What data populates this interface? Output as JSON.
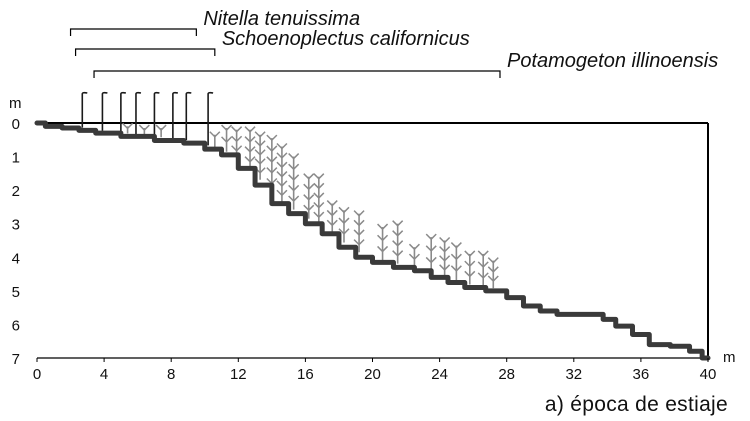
{
  "caption": "a) época de estiaje",
  "x_axis": {
    "unit": "m",
    "min": 0,
    "max": 40,
    "ticks": [
      0,
      4,
      8,
      12,
      16,
      20,
      24,
      28,
      32,
      36,
      40
    ],
    "tick_labels": [
      "0",
      "4",
      "8",
      "12",
      "16",
      "20",
      "24",
      "28",
      "32",
      "36",
      "40"
    ]
  },
  "y_axis": {
    "unit": "m",
    "min": 0,
    "max": 7,
    "inverted": true,
    "ticks": [
      0,
      1,
      2,
      3,
      4,
      5,
      6,
      7
    ],
    "tick_labels": [
      "0",
      "1",
      "2",
      "3",
      "4",
      "5",
      "6",
      "7"
    ]
  },
  "species": [
    {
      "name": "Nitella tenuissima",
      "x_start": 2.0,
      "x_end": 9.5
    },
    {
      "name": "Schoenoplectus californicus",
      "x_start": 2.3,
      "x_end": 10.6
    },
    {
      "name": "Potamogeton illinoensis",
      "x_start": 3.4,
      "x_end": 27.6
    }
  ],
  "bottom_profile": [
    [
      0,
      0.0
    ],
    [
      1,
      0.1
    ],
    [
      2,
      0.15
    ],
    [
      3,
      0.22
    ],
    [
      4,
      0.3
    ],
    [
      6,
      0.4
    ],
    [
      8,
      0.52
    ],
    [
      9.5,
      0.6
    ],
    [
      10.5,
      0.78
    ],
    [
      11.5,
      0.95
    ],
    [
      12.5,
      1.35
    ],
    [
      13.5,
      1.85
    ],
    [
      14.5,
      2.4
    ],
    [
      15.5,
      2.7
    ],
    [
      16.5,
      3.0
    ],
    [
      17.5,
      3.3
    ],
    [
      18.5,
      3.7
    ],
    [
      19.5,
      4.0
    ],
    [
      20.5,
      4.15
    ],
    [
      22,
      4.3
    ],
    [
      23,
      4.4
    ],
    [
      24,
      4.6
    ],
    [
      25,
      4.75
    ],
    [
      26,
      4.9
    ],
    [
      27.5,
      5.0
    ],
    [
      28.5,
      5.2
    ],
    [
      29.5,
      5.45
    ],
    [
      30.5,
      5.6
    ],
    [
      31.5,
      5.7
    ],
    [
      33.5,
      5.7
    ],
    [
      34,
      5.85
    ],
    [
      35,
      6.05
    ],
    [
      36,
      6.3
    ],
    [
      37,
      6.6
    ],
    [
      38.5,
      6.65
    ],
    [
      39.3,
      6.8
    ],
    [
      40,
      7.0
    ]
  ],
  "emergent_plants_x": [
    2.7,
    3.9,
    5.0,
    5.9,
    7.0,
    8.1,
    8.9,
    10.2
  ],
  "submerged_plants": [
    [
      2.6,
      0.12
    ],
    [
      3.4,
      0.15
    ],
    [
      4.6,
      0.15
    ],
    [
      5.4,
      0.1
    ],
    [
      6.4,
      0.15
    ],
    [
      7.4,
      0.15
    ],
    [
      9.8,
      0.45
    ],
    [
      10.6,
      0.35
    ],
    [
      11.3,
      0.15
    ],
    [
      11.9,
      0.2
    ],
    [
      12.7,
      0.2
    ],
    [
      13.3,
      0.35
    ],
    [
      14.0,
      0.45
    ],
    [
      14.6,
      0.7
    ],
    [
      15.3,
      1.0
    ],
    [
      16.2,
      1.6
    ],
    [
      16.8,
      1.6
    ],
    [
      17.6,
      2.4
    ],
    [
      18.3,
      2.6
    ],
    [
      19.2,
      2.7
    ],
    [
      20.6,
      3.1
    ],
    [
      21.5,
      3.0
    ],
    [
      22.5,
      3.7
    ],
    [
      23.5,
      3.4
    ],
    [
      24.3,
      3.5
    ],
    [
      25.0,
      3.65
    ],
    [
      25.8,
      3.9
    ],
    [
      26.6,
      3.9
    ],
    [
      27.2,
      4.1
    ]
  ],
  "colors": {
    "profile": "#3a3a3a",
    "plant": "#8a8a8a",
    "emergent": "#1a1a1a",
    "axis": "#000000"
  }
}
